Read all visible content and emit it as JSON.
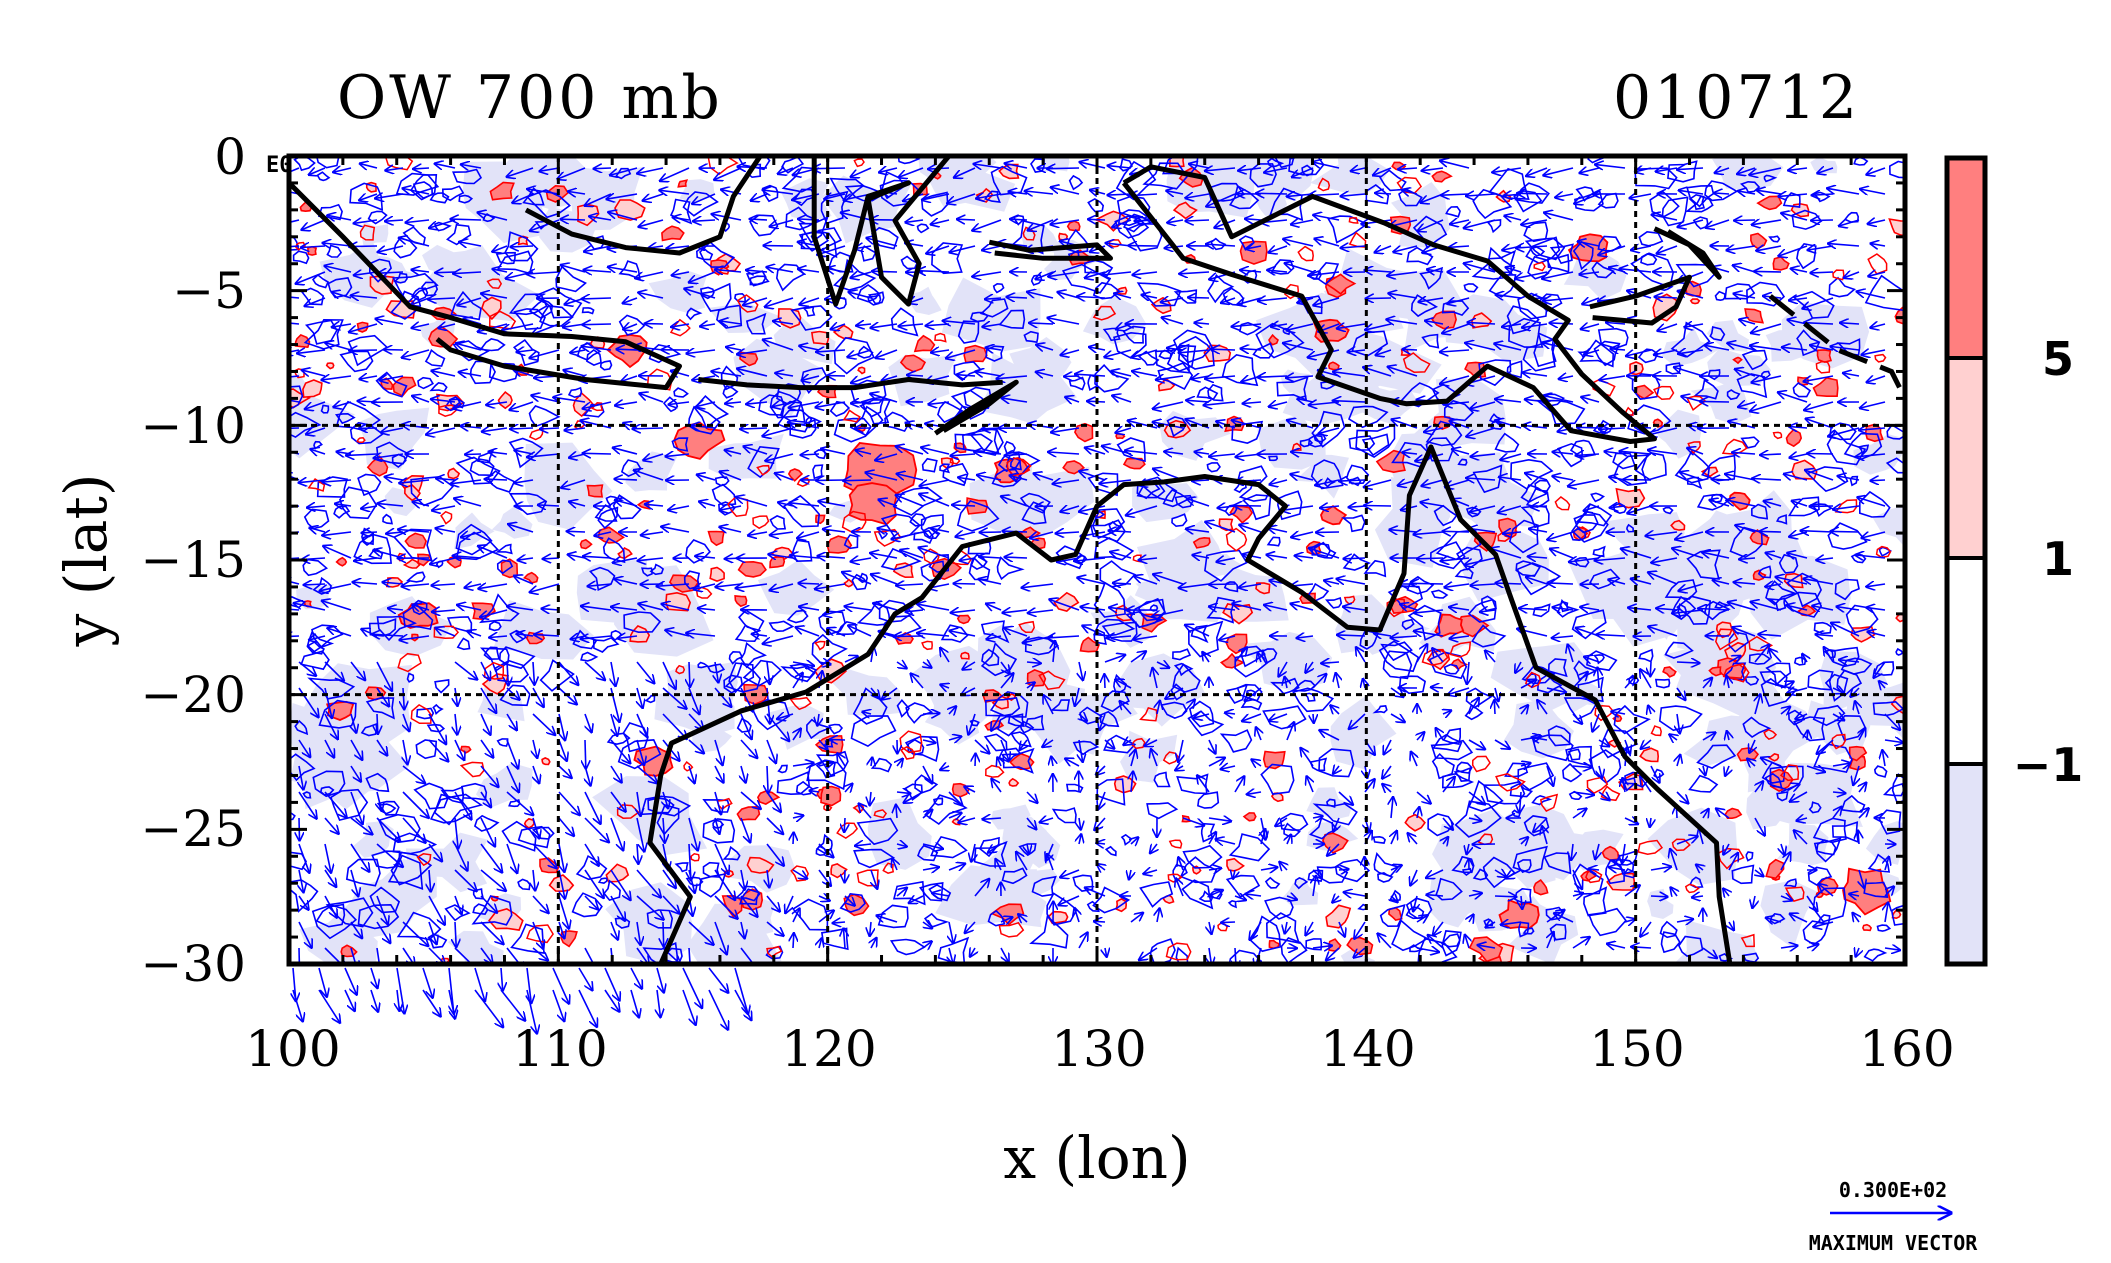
{
  "chart_data": {
    "type": "heatmap",
    "title": "OW 700 mb",
    "date_label": "010712",
    "xlabel": "x (lon)",
    "ylabel": "y (lat)",
    "xlim": [
      100,
      160
    ],
    "ylim": [
      -30,
      0
    ],
    "x_ticks": [
      100,
      110,
      120,
      130,
      140,
      150,
      160
    ],
    "y_ticks": [
      0,
      -5,
      -10,
      -15,
      -20,
      -25,
      -30
    ],
    "x_tick_labels": [
      "100",
      "110",
      "120",
      "130",
      "140",
      "150",
      "160"
    ],
    "y_tick_labels": [
      "0",
      "−5",
      "−10",
      "−15",
      "−20",
      "−25",
      "−30"
    ],
    "grid_x": [
      110,
      120,
      130,
      140,
      150
    ],
    "grid_y": [
      -10,
      -20
    ],
    "corner_label": "E0",
    "colorbar": {
      "levels": [
        -1,
        1,
        5
      ],
      "level_labels": [
        "−1",
        "1",
        "5"
      ],
      "colors": [
        "#e2e3f8",
        "#ffffff",
        "#ffd0d0",
        "#ff7f7f"
      ]
    },
    "vector_reference": {
      "value_label": "0.300E+02",
      "caption": "MAXIMUM VECTOR"
    },
    "colors": {
      "positive_contour": "#ff0000",
      "negative_contour": "#0000ff",
      "negative_fill": "#e2e3f8",
      "positive_fill_strong": "#ff7f7f",
      "positive_fill_weak": "#ffd0d0",
      "vector": "#0000ff",
      "coastline": "#000000"
    }
  }
}
